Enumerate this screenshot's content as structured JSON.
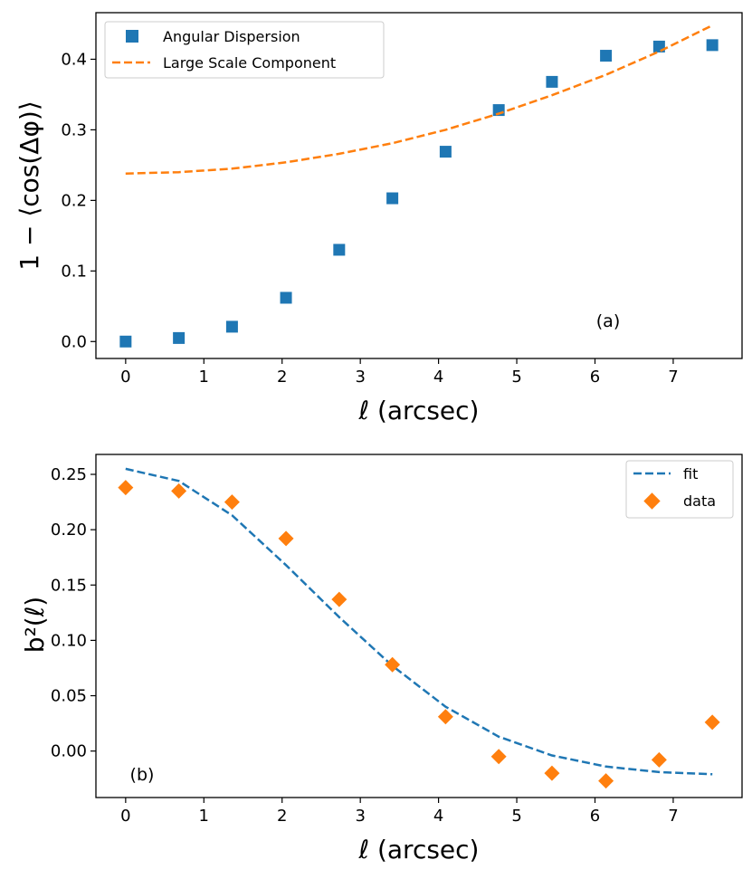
{
  "chart_data": [
    {
      "type": "scatter",
      "panel_label": "(a)",
      "xlabel": "ℓ (arcsec)",
      "ylabel": "1 − ⟨cos(Δφ)⟩",
      "xlim": [
        -0.38,
        7.88
      ],
      "ylim": [
        -0.024,
        0.466
      ],
      "xticks": [
        0,
        1,
        2,
        3,
        4,
        5,
        6,
        7
      ],
      "yticks": [
        0.0,
        0.1,
        0.2,
        0.3,
        0.4
      ],
      "ytick_labels": [
        "0.0",
        "0.1",
        "0.2",
        "0.3",
        "0.4"
      ],
      "grid": false,
      "legend_position": "top-left",
      "series": [
        {
          "name": "Angular Dispersion",
          "kind": "scatter",
          "marker": "square",
          "color": "#1f77b4",
          "x": [
            0.0,
            0.68,
            1.36,
            2.05,
            2.73,
            3.41,
            4.09,
            4.77,
            5.45,
            6.14,
            6.82,
            7.5
          ],
          "y": [
            0.0,
            0.005,
            0.021,
            0.062,
            0.13,
            0.203,
            0.269,
            0.328,
            0.368,
            0.405,
            0.418,
            0.42
          ]
        },
        {
          "name": "Large Scale Component",
          "kind": "line",
          "dash": true,
          "color": "#ff7f0e",
          "x": [
            0.0,
            0.68,
            1.36,
            2.05,
            2.73,
            3.41,
            4.09,
            4.77,
            5.45,
            6.14,
            6.82,
            7.5
          ],
          "y": [
            0.238,
            0.24,
            0.245,
            0.254,
            0.266,
            0.281,
            0.3,
            0.323,
            0.349,
            0.378,
            0.411,
            0.448
          ]
        }
      ]
    },
    {
      "type": "scatter",
      "panel_label": "(b)",
      "xlabel": "ℓ (arcsec)",
      "ylabel": "b²(ℓ)",
      "xlim": [
        -0.38,
        7.88
      ],
      "ylim": [
        -0.042,
        0.268
      ],
      "xticks": [
        0,
        1,
        2,
        3,
        4,
        5,
        6,
        7
      ],
      "yticks": [
        0.0,
        0.05,
        0.1,
        0.15,
        0.2,
        0.25
      ],
      "ytick_labels": [
        "0.00",
        "0.05",
        "0.10",
        "0.15",
        "0.20",
        "0.25"
      ],
      "grid": false,
      "legend_position": "top-right",
      "series": [
        {
          "name": "fit",
          "kind": "line",
          "dash": true,
          "color": "#1f77b4",
          "x": [
            0.0,
            0.68,
            1.36,
            2.05,
            2.73,
            3.41,
            4.09,
            4.77,
            5.45,
            6.14,
            6.82,
            7.5
          ],
          "y": [
            0.255,
            0.244,
            0.213,
            0.168,
            0.121,
            0.077,
            0.04,
            0.013,
            -0.004,
            -0.014,
            -0.019,
            -0.021
          ]
        },
        {
          "name": "data",
          "kind": "scatter",
          "marker": "diamond",
          "color": "#ff7f0e",
          "x": [
            0.0,
            0.68,
            1.36,
            2.05,
            2.73,
            3.41,
            4.09,
            4.77,
            5.45,
            6.14,
            6.82,
            7.5
          ],
          "y": [
            0.238,
            0.235,
            0.225,
            0.192,
            0.137,
            0.078,
            0.031,
            -0.005,
            -0.02,
            -0.027,
            -0.008,
            0.026
          ]
        }
      ]
    }
  ]
}
